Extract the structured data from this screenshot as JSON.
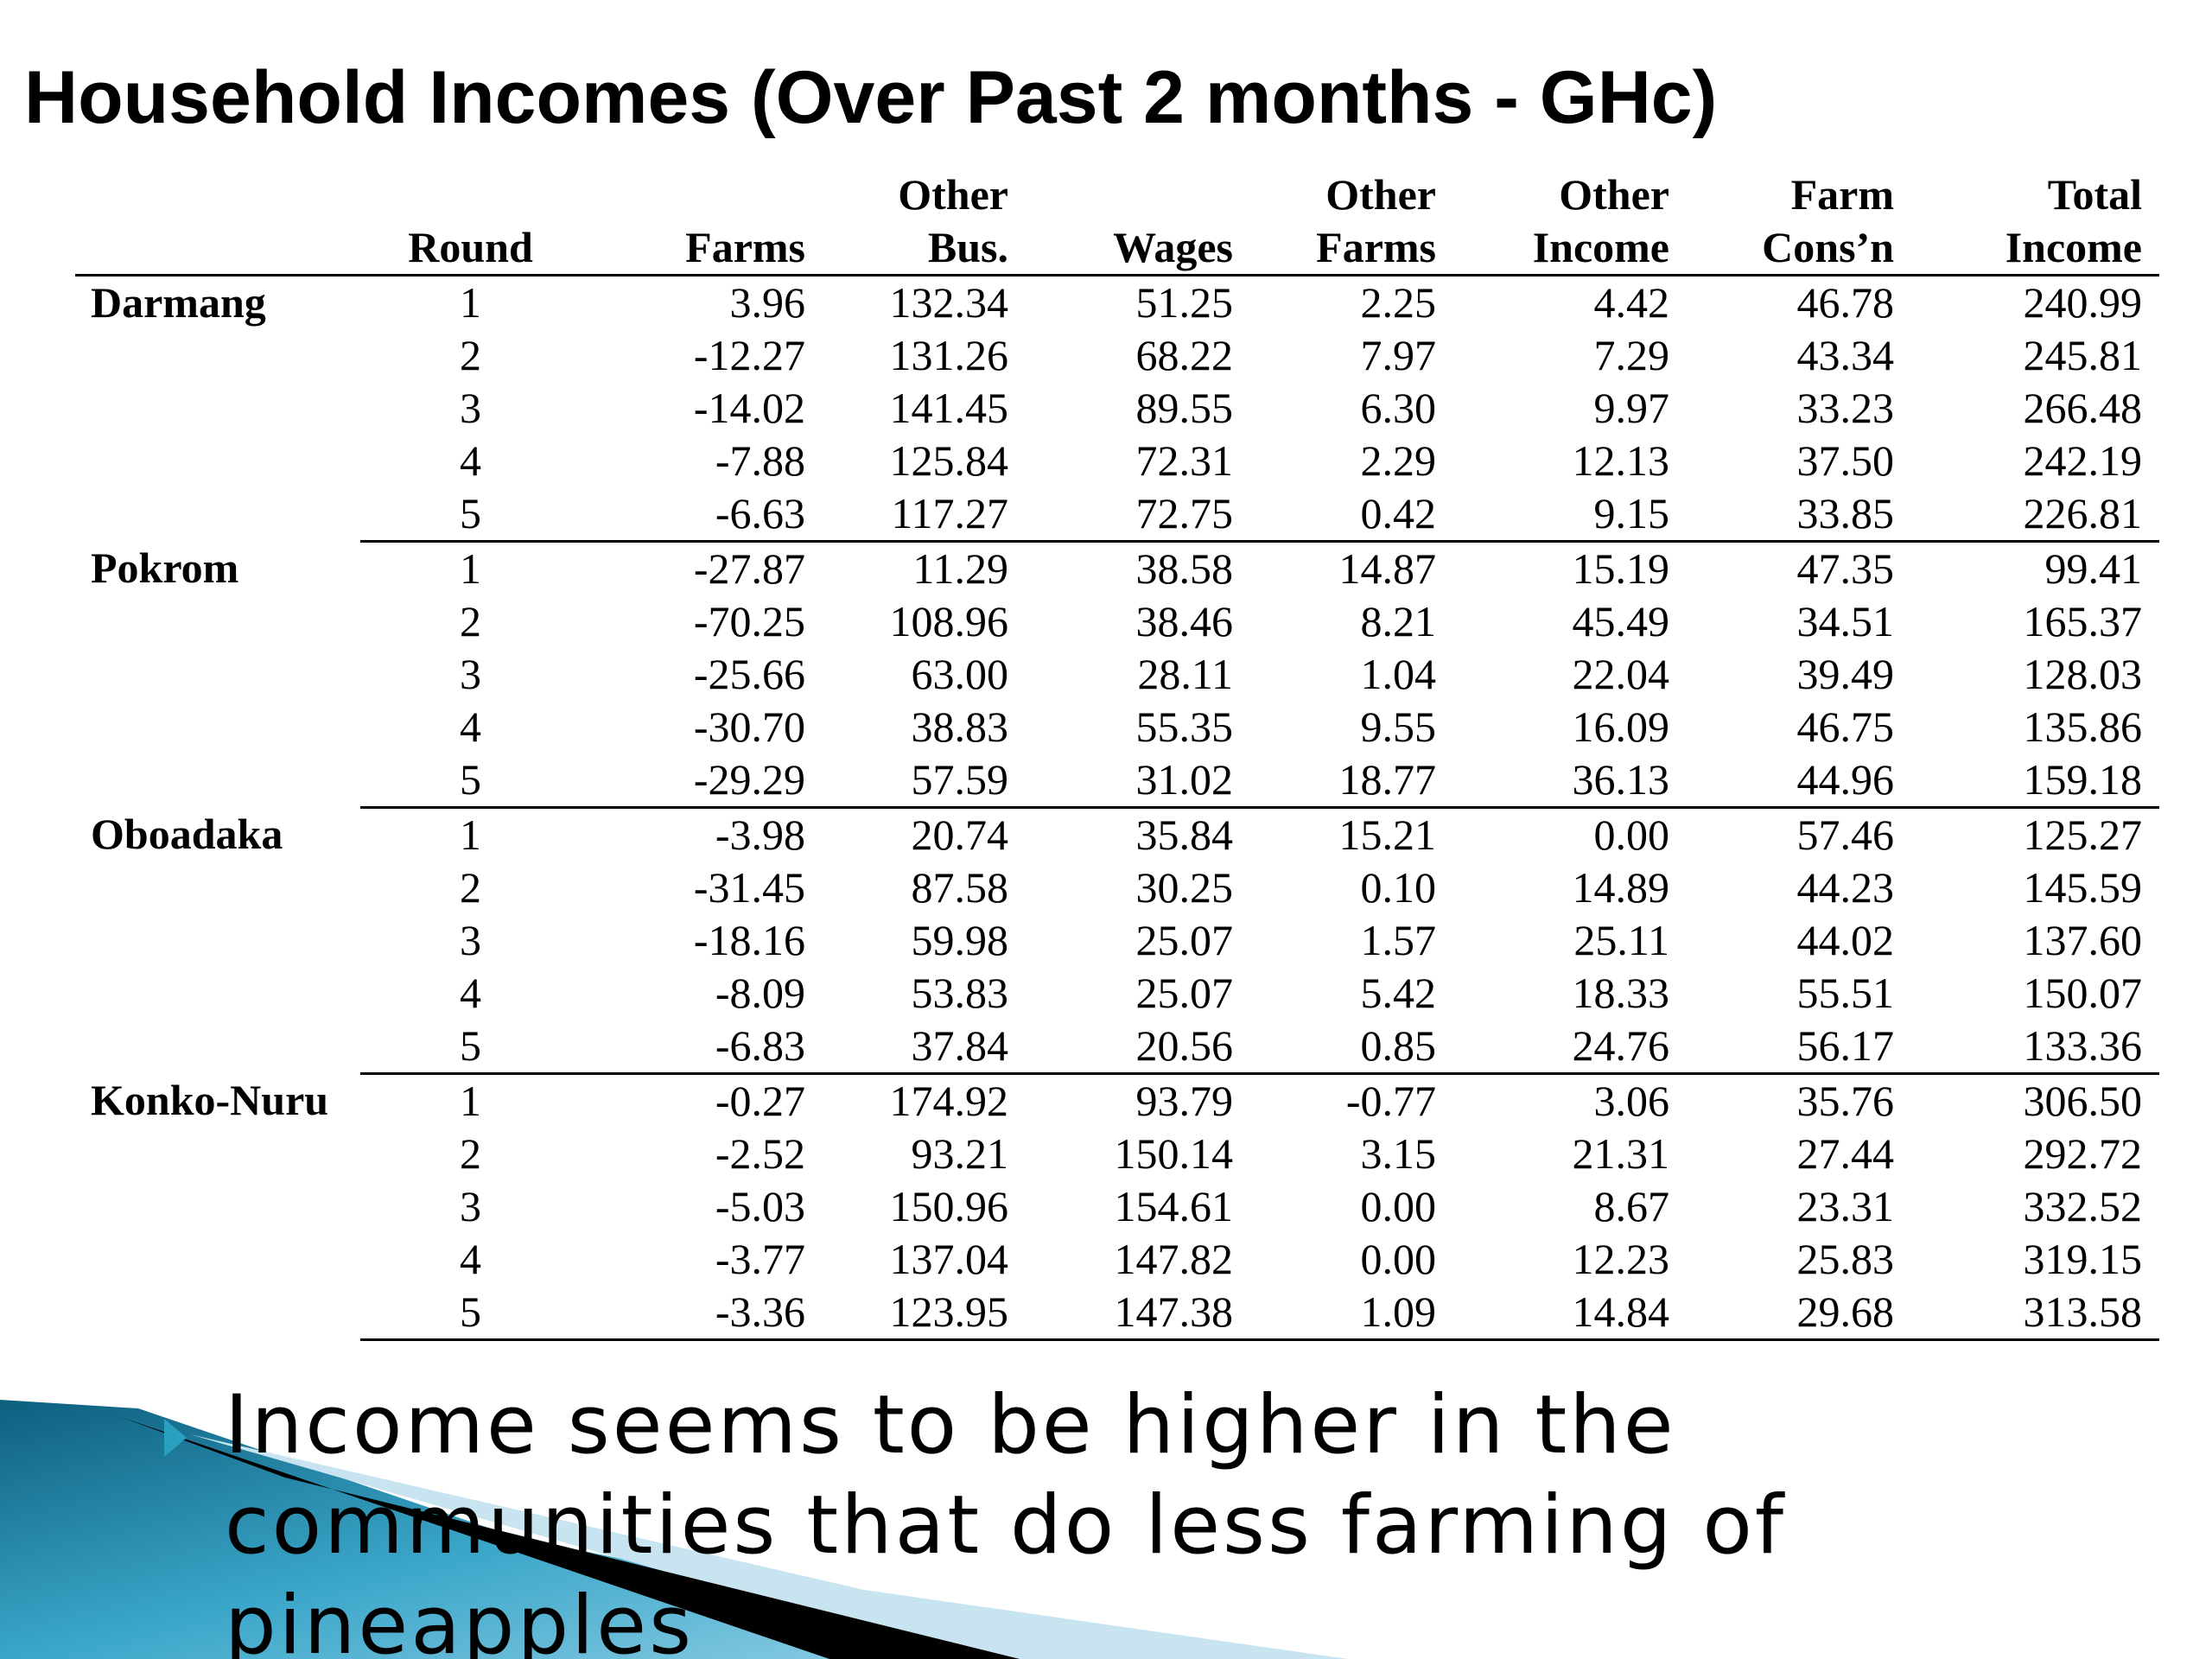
{
  "title": "Household Incomes (Over Past 2 months - GHc)",
  "table": {
    "header_top": [
      "",
      "",
      "",
      "Other",
      "",
      "Other",
      "Other",
      "Farm",
      "Total"
    ],
    "header_bottom": [
      "",
      "Round",
      "Farms",
      "Bus.",
      "Wages",
      "Farms",
      "Income",
      "Cons’n",
      "Income"
    ],
    "groups": [
      {
        "village": "Darmang",
        "rows": [
          [
            "1",
            "3.96",
            "132.34",
            "51.25",
            "2.25",
            "4.42",
            "46.78",
            "240.99"
          ],
          [
            "2",
            "-12.27",
            "131.26",
            "68.22",
            "7.97",
            "7.29",
            "43.34",
            "245.81"
          ],
          [
            "3",
            "-14.02",
            "141.45",
            "89.55",
            "6.30",
            "9.97",
            "33.23",
            "266.48"
          ],
          [
            "4",
            "-7.88",
            "125.84",
            "72.31",
            "2.29",
            "12.13",
            "37.50",
            "242.19"
          ],
          [
            "5",
            "-6.63",
            "117.27",
            "72.75",
            "0.42",
            "9.15",
            "33.85",
            "226.81"
          ]
        ]
      },
      {
        "village": "Pokrom",
        "rows": [
          [
            "1",
            "-27.87",
            "11.29",
            "38.58",
            "14.87",
            "15.19",
            "47.35",
            "99.41"
          ],
          [
            "2",
            "-70.25",
            "108.96",
            "38.46",
            "8.21",
            "45.49",
            "34.51",
            "165.37"
          ],
          [
            "3",
            "-25.66",
            "63.00",
            "28.11",
            "1.04",
            "22.04",
            "39.49",
            "128.03"
          ],
          [
            "4",
            "-30.70",
            "38.83",
            "55.35",
            "9.55",
            "16.09",
            "46.75",
            "135.86"
          ],
          [
            "5",
            "-29.29",
            "57.59",
            "31.02",
            "18.77",
            "36.13",
            "44.96",
            "159.18"
          ]
        ]
      },
      {
        "village": "Oboadaka",
        "rows": [
          [
            "1",
            "-3.98",
            "20.74",
            "35.84",
            "15.21",
            "0.00",
            "57.46",
            "125.27"
          ],
          [
            "2",
            "-31.45",
            "87.58",
            "30.25",
            "0.10",
            "14.89",
            "44.23",
            "145.59"
          ],
          [
            "3",
            "-18.16",
            "59.98",
            "25.07",
            "1.57",
            "25.11",
            "44.02",
            "137.60"
          ],
          [
            "4",
            "-8.09",
            "53.83",
            "25.07",
            "5.42",
            "18.33",
            "55.51",
            "150.07"
          ],
          [
            "5",
            "-6.83",
            "37.84",
            "20.56",
            "0.85",
            "24.76",
            "56.17",
            "133.36"
          ]
        ]
      },
      {
        "village": "Konko-Nuru",
        "rows": [
          [
            "1",
            "-0.27",
            "174.92",
            "93.79",
            "-0.77",
            "3.06",
            "35.76",
            "306.50"
          ],
          [
            "2",
            "-2.52",
            "93.21",
            "150.14",
            "3.15",
            "21.31",
            "27.44",
            "292.72"
          ],
          [
            "3",
            "-5.03",
            "150.96",
            "154.61",
            "0.00",
            "8.67",
            "23.31",
            "332.52"
          ],
          [
            "4",
            "-3.77",
            "137.04",
            "147.82",
            "0.00",
            "12.23",
            "25.83",
            "319.15"
          ],
          [
            "5",
            "-3.36",
            "123.95",
            "147.38",
            "1.09",
            "14.84",
            "29.68",
            "313.58"
          ]
        ]
      }
    ]
  },
  "bullet": {
    "icon": "triangle-bullet-icon",
    "color": "#2a9fc0",
    "text": "Income seems to be higher in the communities that do less farming of pineapples"
  }
}
